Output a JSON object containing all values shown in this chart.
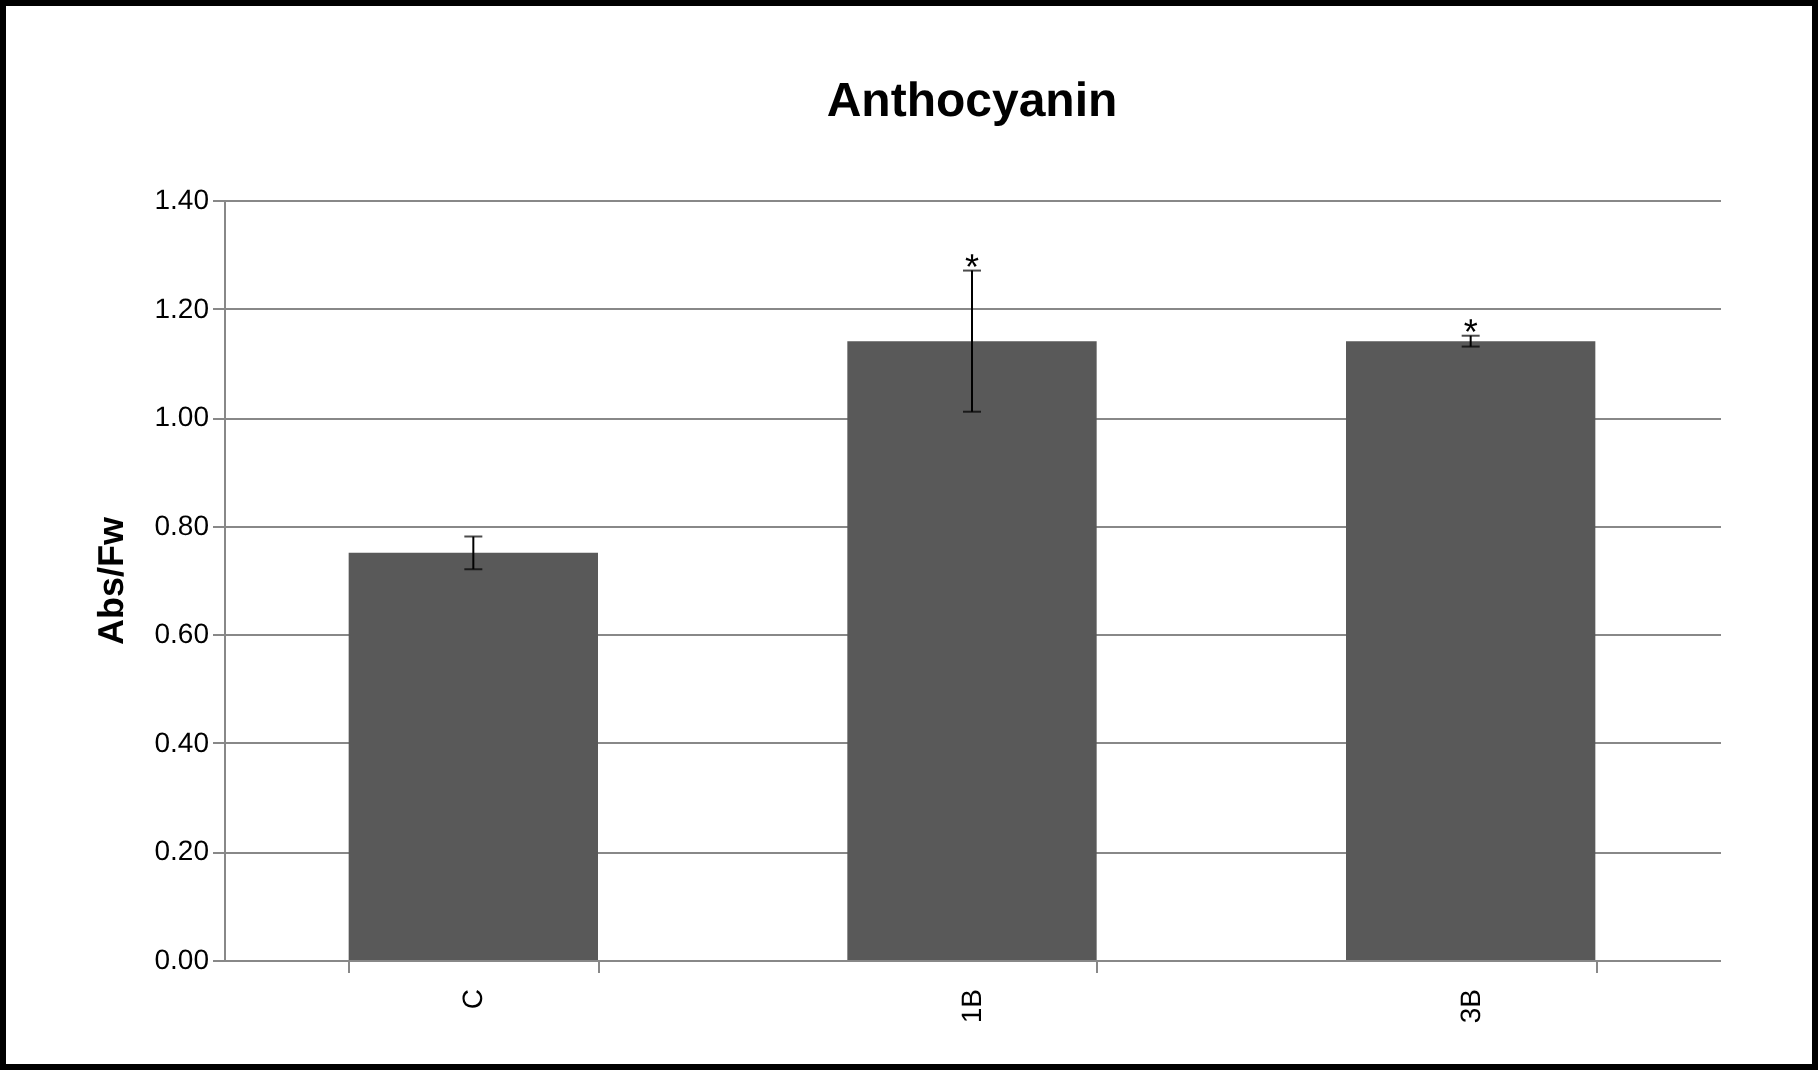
{
  "chart_data": {
    "type": "bar",
    "title": "Anthocyanin",
    "ylabel": "Abs/Fw",
    "categories": [
      "C",
      "1B",
      "3B"
    ],
    "values": [
      0.75,
      1.14,
      1.14
    ],
    "errors": [
      0.03,
      0.13,
      0.01
    ],
    "color": "#595959",
    "ylim": [
      0,
      1.4
    ],
    "yticks": [
      {
        "value": 0,
        "label": "0.00"
      },
      {
        "value": 0.2,
        "label": "0.20"
      },
      {
        "value": 0.4,
        "label": "0.40"
      },
      {
        "value": 0.6,
        "label": "0.60"
      },
      {
        "value": 0.8,
        "label": "0.80"
      },
      {
        "value": 1,
        "label": "1.00"
      },
      {
        "value": 1.2,
        "label": "1.20"
      },
      {
        "value": 1.4,
        "label": "1.40"
      }
    ],
    "grid": "y",
    "annotations": [
      {
        "text": "*",
        "x": "1B",
        "y": 1.27
      },
      {
        "text": "*",
        "x": "3B",
        "y": 1.15
      }
    ]
  }
}
